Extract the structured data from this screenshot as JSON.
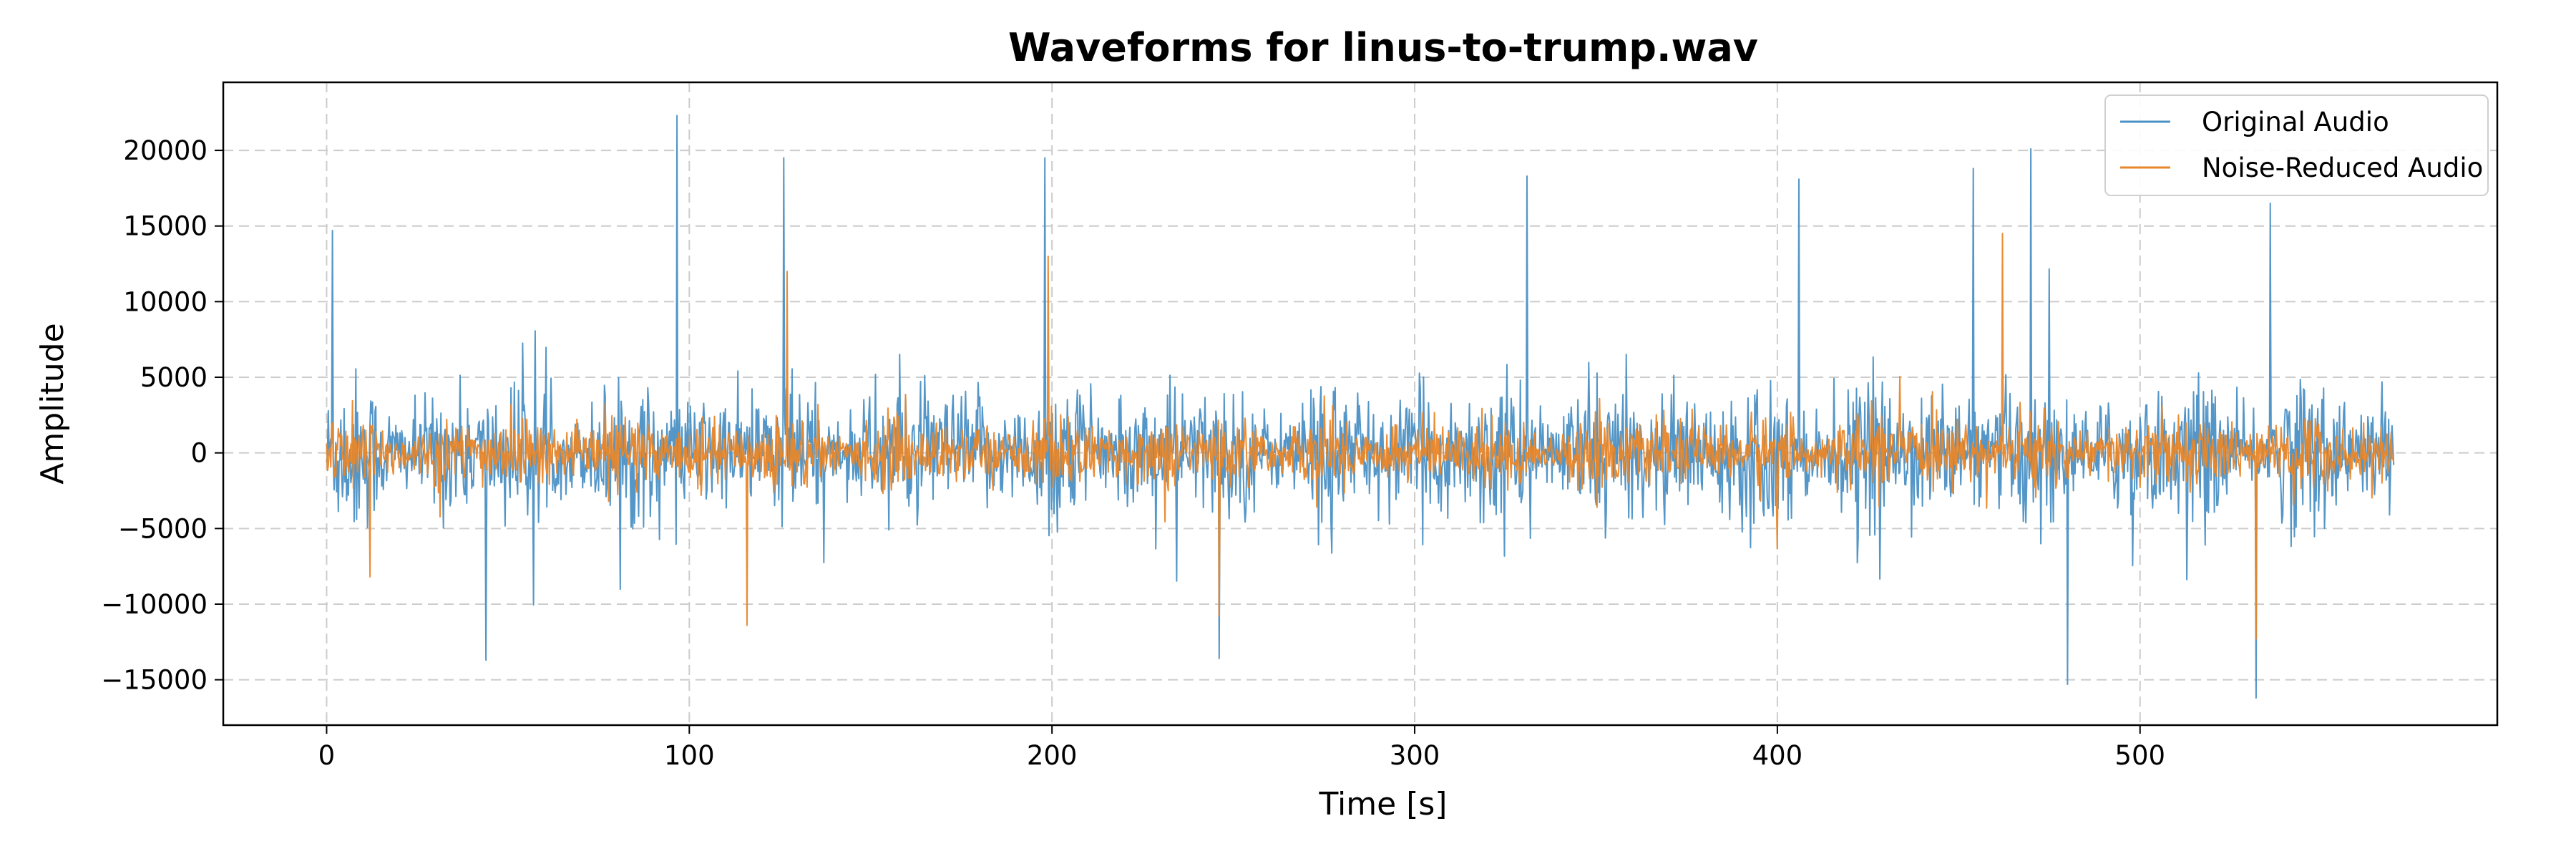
{
  "chart_data": {
    "type": "line",
    "title": "Waveforms for linus-to-trump.wav",
    "xlabel": "Time [s]",
    "ylabel": "Amplitude",
    "xlim": [
      -28.5,
      598.5
    ],
    "ylim": [
      -18000,
      24500
    ],
    "xticks": [
      0,
      100,
      200,
      300,
      400,
      500
    ],
    "yticks": [
      -15000,
      -10000,
      -5000,
      0,
      5000,
      10000,
      15000,
      20000
    ],
    "ytick_labels": [
      "−15000",
      "−10000",
      "−5000",
      "0",
      "5000",
      "10000",
      "15000",
      "20000"
    ],
    "grid": true,
    "legend_position": "top-right",
    "x_range": [
      0,
      570
    ],
    "series": [
      {
        "name": "Original Audio",
        "color": "#4a90c4",
        "peaks": [
          {
            "x": 1.5,
            "y": 14700
          },
          {
            "x": 44,
            "y": -13700
          },
          {
            "x": 96.5,
            "y": 22300
          },
          {
            "x": 126,
            "y": 19500
          },
          {
            "x": 198,
            "y": 19500
          },
          {
            "x": 246,
            "y": -13600
          },
          {
            "x": 331,
            "y": 18300
          },
          {
            "x": 406,
            "y": 18100
          },
          {
            "x": 454,
            "y": 18800
          },
          {
            "x": 470,
            "y": 20100
          },
          {
            "x": 480,
            "y": -15300
          },
          {
            "x": 532,
            "y": -16200
          },
          {
            "x": 536,
            "y": 16500
          }
        ],
        "typical_amplitude": 5000
      },
      {
        "name": "Noise-Reduced Audio",
        "color": "#e8862a",
        "peaks": [
          {
            "x": 12,
            "y": -8200
          },
          {
            "x": 116,
            "y": -11400
          },
          {
            "x": 127,
            "y": 12000
          },
          {
            "x": 199,
            "y": 13000
          },
          {
            "x": 246,
            "y": -10800
          },
          {
            "x": 462,
            "y": 14500
          },
          {
            "x": 532,
            "y": -12300
          }
        ],
        "typical_amplitude": 2500
      }
    ]
  }
}
